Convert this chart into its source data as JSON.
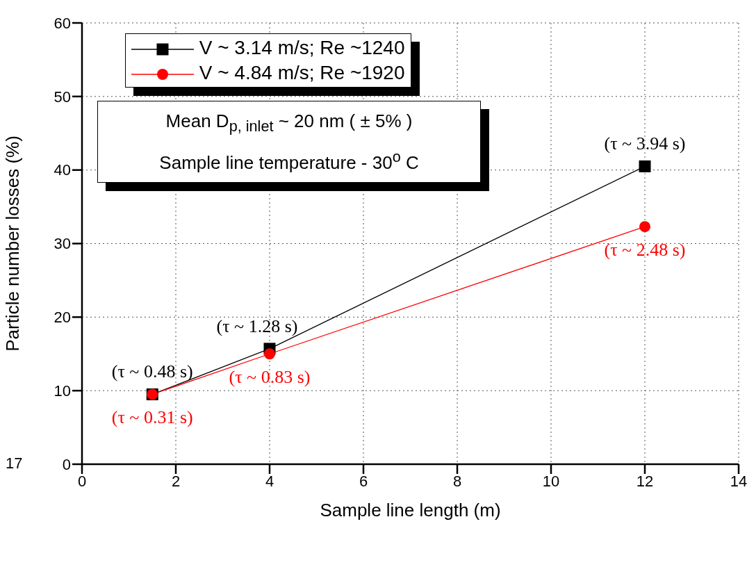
{
  "chart_data": {
    "type": "line",
    "xlabel": "Sample line length (m)",
    "ylabel": "Particle number losses (%)",
    "xlim": [
      0,
      14
    ],
    "xticks": [
      0,
      2,
      4,
      6,
      8,
      10,
      12,
      14
    ],
    "ylim": [
      0,
      60
    ],
    "yticks": [
      0,
      10,
      20,
      30,
      40,
      50,
      60
    ],
    "grid": true,
    "legend": "top left",
    "line_style": "solid",
    "series": [
      {
        "name": "V ~ 3.14 m/s; Re ~1240",
        "color": "#000000",
        "marker": "square",
        "x": [
          1.5,
          4,
          12
        ],
        "values": [
          9.5,
          15.7,
          40.5
        ]
      },
      {
        "name": "V ~ 4.84 m/s; Re ~1920",
        "color": "#ff0000",
        "marker": "circle",
        "x": [
          1.5,
          4,
          12
        ],
        "values": [
          9.5,
          15.0,
          32.3
        ]
      }
    ],
    "annotations": [
      {
        "text": "(τ ~ 0.48 s)",
        "x": 1.5,
        "y": 9.5
      },
      {
        "text": "(τ ~ 1.28 s)",
        "x": 4,
        "y": 15.7
      },
      {
        "text": "(τ ~ 3.94 s)",
        "x": 12,
        "y": 40.5
      },
      {
        "text": "(τ ~ 0.31 s)",
        "x": 1.5,
        "y": 9.5
      },
      {
        "text": "(τ ~ 0.83 s)",
        "x": 4,
        "y": 15.0
      },
      {
        "text": "(τ ~ 2.48 s)",
        "x": 12,
        "y": 32.3
      },
      "Mean D$_{p, inlet}$ ~ 20 nm ( ± 5% )",
      "Sample line temperature - 30$^{o}$ C",
      "17"
    ]
  }
}
